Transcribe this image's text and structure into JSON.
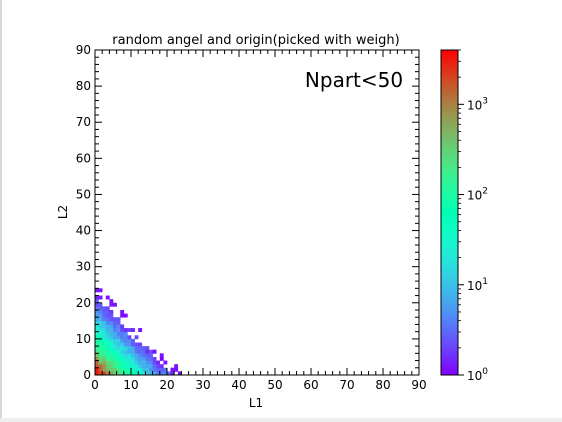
{
  "chart_data": {
    "type": "heatmap",
    "title": "random angel and origin(picked with weigh)",
    "annotation": "Npart<50",
    "xlabel": "L1",
    "ylabel": "L2",
    "xlim": [
      0,
      90
    ],
    "ylim": [
      0,
      90
    ],
    "xticks": [
      "0",
      "10",
      "20",
      "30",
      "40",
      "50",
      "60",
      "70",
      "80",
      "90"
    ],
    "yticks": [
      "0",
      "10",
      "20",
      "30",
      "40",
      "50",
      "60",
      "70",
      "80",
      "90"
    ],
    "bin_width": 1,
    "colorbar": {
      "scale": "log",
      "range": [
        1,
        4000
      ],
      "colormap": "rainbow",
      "ticks": [
        {
          "value": 1,
          "base": "10",
          "exp": "0"
        },
        {
          "value": 10,
          "base": "10",
          "exp": "1"
        },
        {
          "value": 100,
          "base": "10",
          "exp": "2"
        },
        {
          "value": 1000,
          "base": "10",
          "exp": "3"
        }
      ]
    },
    "distribution": {
      "shape": "triangular region L1 + L2 ≲ 24, counts highest near origin",
      "peak_count": 3500,
      "peak_at": [
        0,
        0
      ]
    },
    "grid": false,
    "colors": {
      "low": "#8000ff",
      "mid": "#80ff80",
      "high": "#ff0000"
    }
  }
}
